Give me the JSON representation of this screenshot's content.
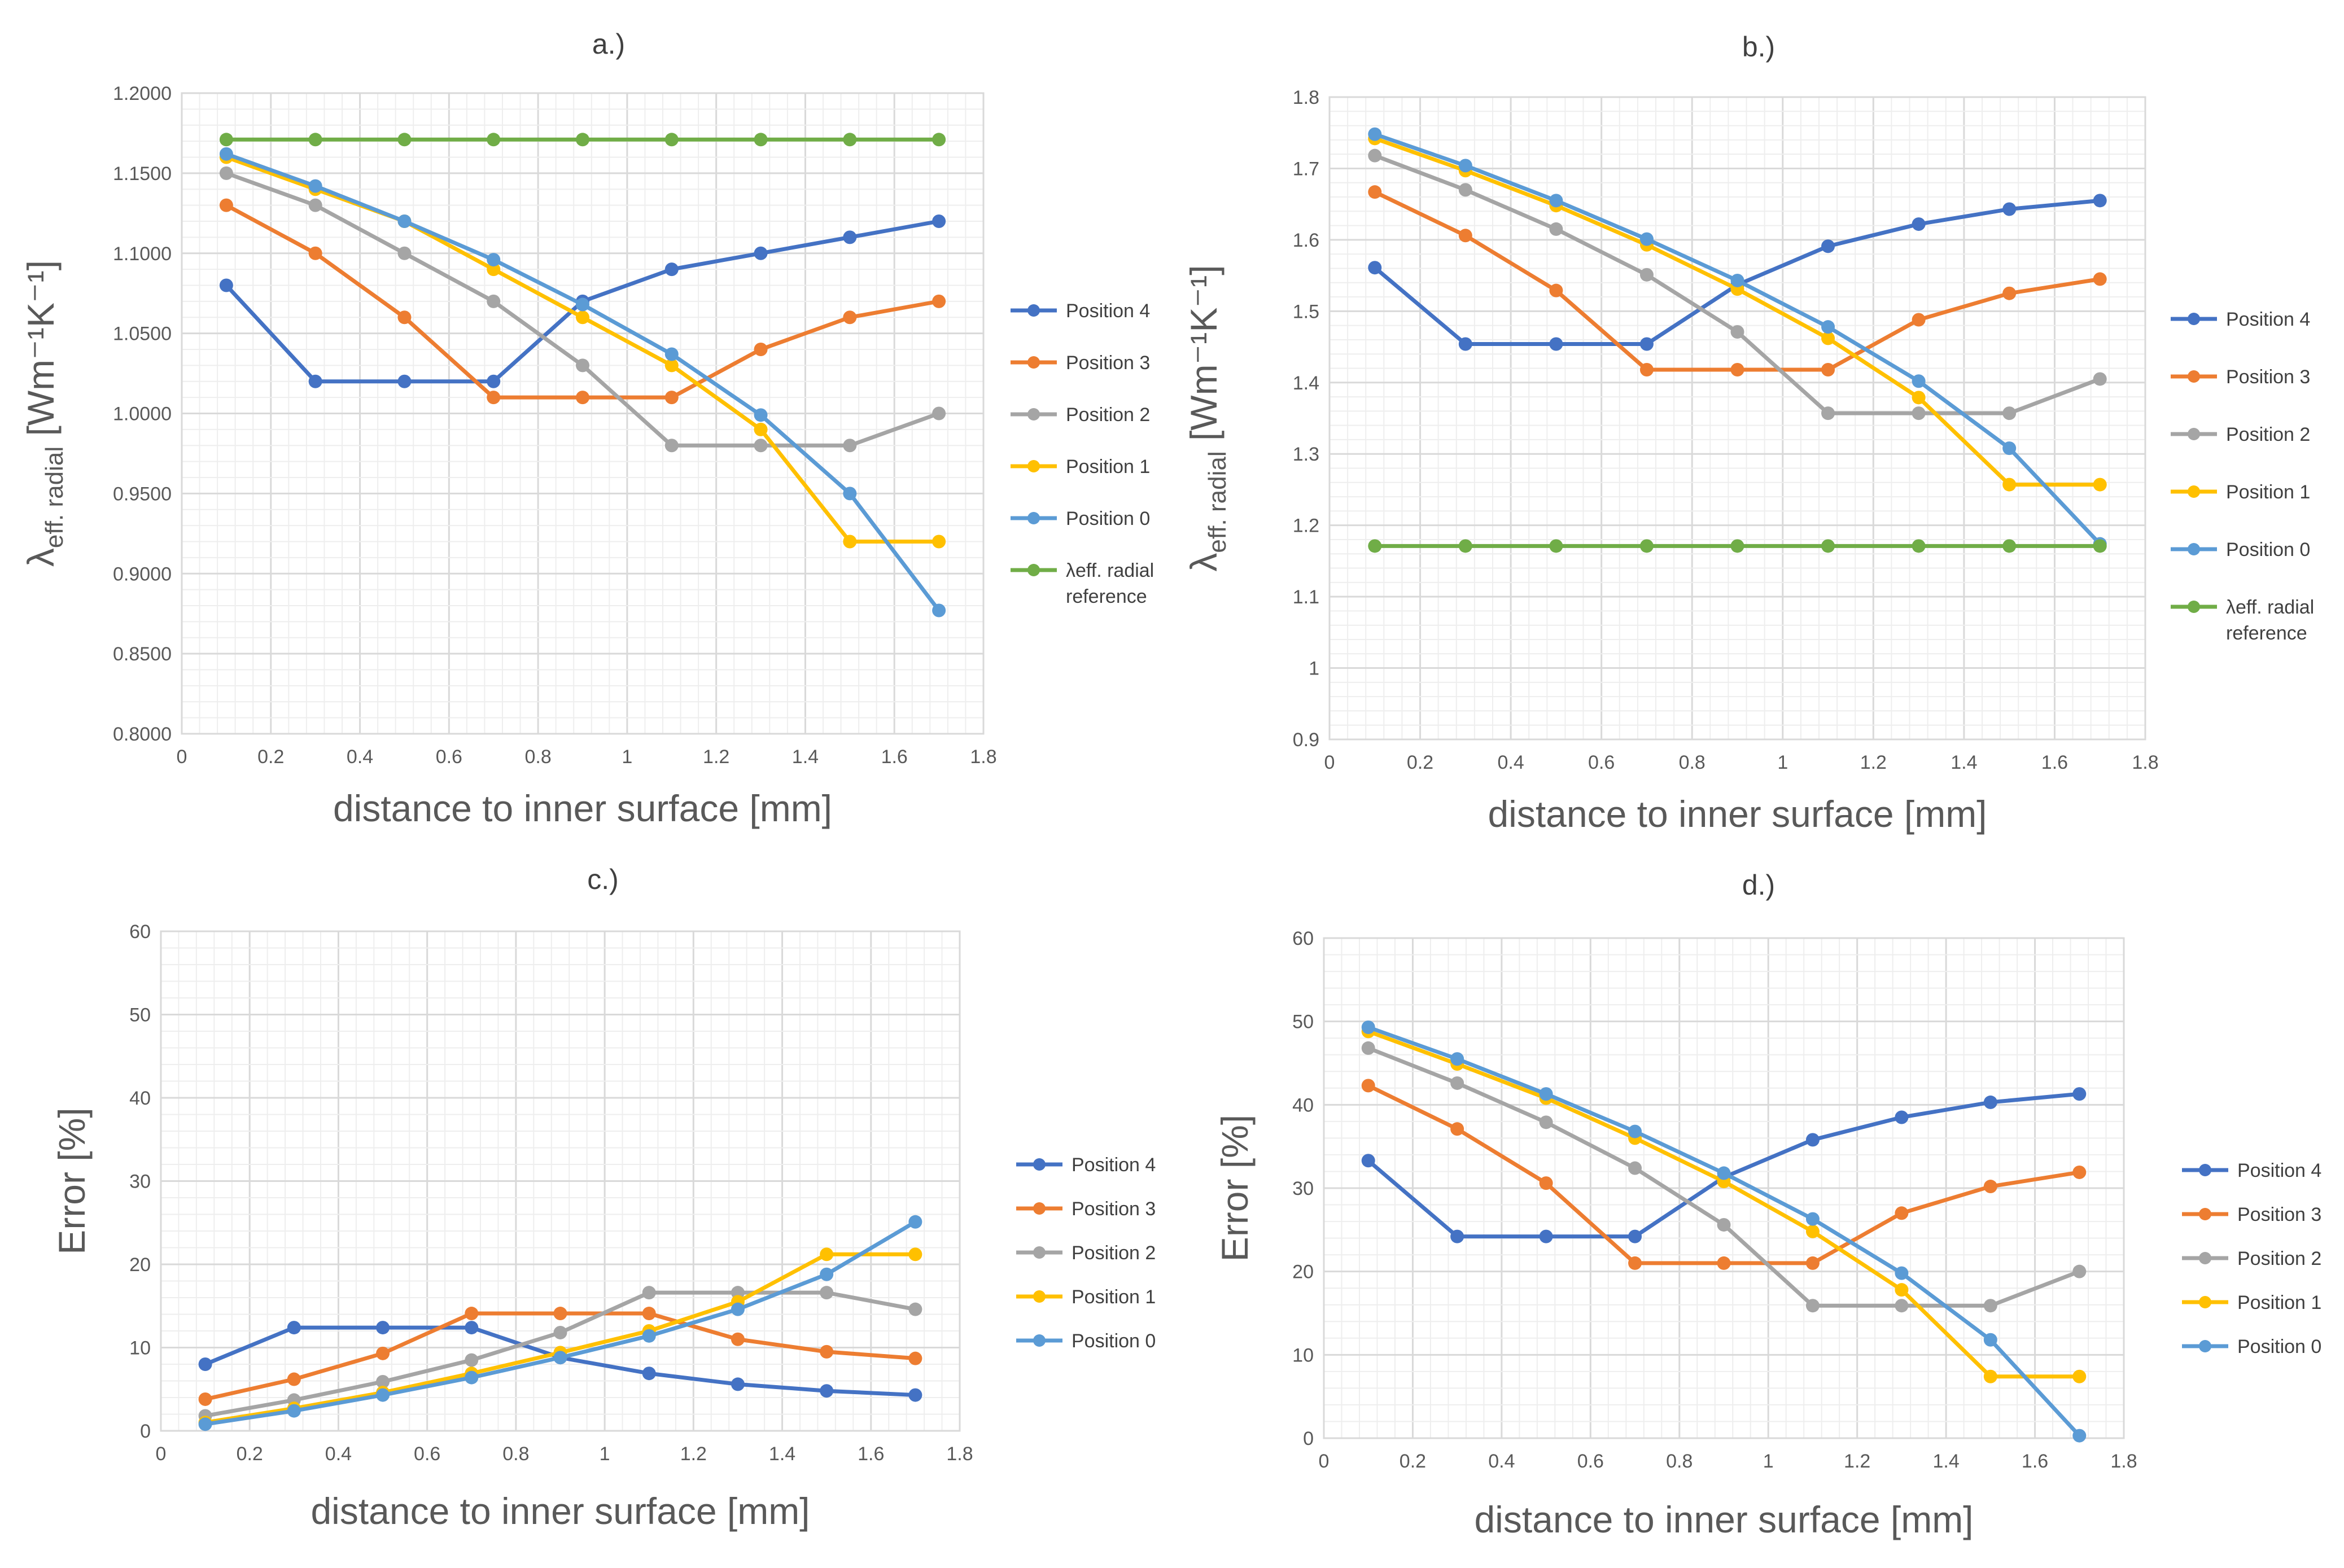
{
  "chart_data": [
    {
      "type": "line",
      "title": "a.)",
      "xlabel": "distance to inner surface [mm]",
      "ylabel": {
        "main": "λ",
        "sub": "eff. radial",
        "unit": " [Wm⁻¹K⁻¹]"
      },
      "xlim": [
        0,
        1.8
      ],
      "ylim": [
        0.8,
        1.2
      ],
      "x_ticks": [
        "0",
        "0.2",
        "0.4",
        "0.6",
        "0.8",
        "1",
        "1.2",
        "1.4",
        "1.6",
        "1.8"
      ],
      "y_ticks": [
        "0.8000",
        "0.8500",
        "0.9000",
        "0.9500",
        "1.0000",
        "1.0500",
        "1.1000",
        "1.1500",
        "1.2000"
      ],
      "grid": true,
      "legend_position": "right",
      "x": [
        0.1,
        0.3,
        0.5,
        0.7,
        0.9,
        1.1,
        1.3,
        1.5,
        1.7
      ],
      "series": [
        {
          "name": "Position 4",
          "color": "#4472C4",
          "values": [
            1.08,
            1.02,
            1.02,
            1.02,
            1.07,
            1.09,
            1.1,
            1.11,
            1.12
          ]
        },
        {
          "name": "Position 3",
          "color": "#ED7D31",
          "values": [
            1.13,
            1.1,
            1.06,
            1.01,
            1.01,
            1.01,
            1.04,
            1.06,
            1.07
          ]
        },
        {
          "name": "Position 2",
          "color": "#A5A5A5",
          "values": [
            1.15,
            1.13,
            1.1,
            1.07,
            1.03,
            0.98,
            0.98,
            0.98,
            1.0
          ]
        },
        {
          "name": "Position 1",
          "color": "#FFC000",
          "values": [
            1.16,
            1.14,
            1.12,
            1.09,
            1.06,
            1.03,
            0.99,
            0.92,
            0.92
          ]
        },
        {
          "name": "Position 0",
          "color": "#5B9BD5",
          "values": [
            1.162,
            1.142,
            1.12,
            1.096,
            1.068,
            1.037,
            0.999,
            0.95,
            0.877
          ]
        },
        {
          "name": "λeff. radial reference",
          "color": "#70AD47",
          "values": [
            1.171,
            1.171,
            1.171,
            1.171,
            1.171,
            1.171,
            1.171,
            1.171,
            1.171
          ]
        }
      ]
    },
    {
      "type": "line",
      "title": "b.)",
      "xlabel": "distance to inner surface [mm]",
      "ylabel": {
        "main": "λ",
        "sub": "eff. radial",
        "unit": " [Wm⁻¹K⁻¹]"
      },
      "xlim": [
        0,
        1.8
      ],
      "ylim": [
        0.9,
        1.8
      ],
      "x_ticks": [
        "0",
        "0.2",
        "0.4",
        "0.6",
        "0.8",
        "1",
        "1.2",
        "1.4",
        "1.6",
        "1.8"
      ],
      "y_ticks": [
        "0.9",
        "1",
        "1.1",
        "1.2",
        "1.3",
        "1.4",
        "1.5",
        "1.6",
        "1.7",
        "1.8"
      ],
      "grid": true,
      "legend_position": "right",
      "x": [
        0.1,
        0.3,
        0.5,
        0.7,
        0.9,
        1.1,
        1.3,
        1.5,
        1.7
      ],
      "series": [
        {
          "name": "Position 4",
          "color": "#4472C4",
          "values": [
            1.561,
            1.454,
            1.454,
            1.454,
            1.537,
            1.591,
            1.622,
            1.643,
            1.655
          ]
        },
        {
          "name": "Position 3",
          "color": "#ED7D31",
          "values": [
            1.667,
            1.606,
            1.529,
            1.418,
            1.418,
            1.418,
            1.488,
            1.525,
            1.545
          ]
        },
        {
          "name": "Position 2",
          "color": "#A5A5A5",
          "values": [
            1.718,
            1.67,
            1.615,
            1.551,
            1.471,
            1.357,
            1.357,
            1.357,
            1.405
          ]
        },
        {
          "name": "Position 1",
          "color": "#FFC000",
          "values": [
            1.742,
            1.697,
            1.648,
            1.593,
            1.531,
            1.462,
            1.379,
            1.257,
            1.257
          ]
        },
        {
          "name": "Position 0",
          "color": "#5B9BD5",
          "values": [
            1.748,
            1.704,
            1.655,
            1.601,
            1.543,
            1.478,
            1.402,
            1.308,
            1.174
          ]
        },
        {
          "name": "λeff. radial reference",
          "color": "#70AD47",
          "values": [
            1.171,
            1.171,
            1.171,
            1.171,
            1.171,
            1.171,
            1.171,
            1.171,
            1.171
          ]
        }
      ]
    },
    {
      "type": "line",
      "title": "c.)",
      "xlabel": "distance to inner surface [mm]",
      "ylabel": {
        "main": "Error [%]"
      },
      "xlim": [
        0,
        1.8
      ],
      "ylim": [
        0,
        60
      ],
      "x_ticks": [
        "0",
        "0.2",
        "0.4",
        "0.6",
        "0.8",
        "1",
        "1.2",
        "1.4",
        "1.6",
        "1.8"
      ],
      "y_ticks": [
        "0",
        "10",
        "20",
        "30",
        "40",
        "50",
        "60"
      ],
      "grid": true,
      "legend_position": "right",
      "x": [
        0.1,
        0.3,
        0.5,
        0.7,
        0.9,
        1.1,
        1.3,
        1.5,
        1.7
      ],
      "series": [
        {
          "name": "Position 4",
          "color": "#4472C4",
          "values": [
            8.0,
            12.4,
            12.4,
            12.4,
            8.8,
            6.9,
            5.6,
            4.8,
            4.3
          ]
        },
        {
          "name": "Position 3",
          "color": "#ED7D31",
          "values": [
            3.8,
            6.2,
            9.3,
            14.1,
            14.1,
            14.1,
            11.0,
            9.5,
            8.7
          ]
        },
        {
          "name": "Position 2",
          "color": "#A5A5A5",
          "values": [
            1.8,
            3.7,
            5.9,
            8.5,
            11.8,
            16.6,
            16.6,
            16.6,
            14.6
          ]
        },
        {
          "name": "Position 1",
          "color": "#FFC000",
          "values": [
            1.0,
            2.7,
            4.6,
            6.9,
            9.4,
            12.0,
            15.5,
            21.2,
            21.2
          ]
        },
        {
          "name": "Position 0",
          "color": "#5B9BD5",
          "values": [
            0.8,
            2.4,
            4.3,
            6.4,
            8.8,
            11.4,
            14.6,
            18.8,
            25.1
          ]
        }
      ]
    },
    {
      "type": "line",
      "title": "d.)",
      "xlabel": "distance to inner surface [mm]",
      "ylabel": {
        "main": "Error [%]"
      },
      "xlim": [
        0,
        1.8
      ],
      "ylim": [
        0,
        60
      ],
      "x_ticks": [
        "0",
        "0.2",
        "0.4",
        "0.6",
        "0.8",
        "1",
        "1.2",
        "1.4",
        "1.6",
        "1.8"
      ],
      "y_ticks": [
        "0",
        "10",
        "20",
        "30",
        "40",
        "50",
        "60"
      ],
      "grid": true,
      "legend_position": "right",
      "x": [
        0.1,
        0.3,
        0.5,
        0.7,
        0.9,
        1.1,
        1.3,
        1.5,
        1.7
      ],
      "series": [
        {
          "name": "Position 4",
          "color": "#4472C4",
          "values": [
            33.3,
            24.2,
            24.2,
            24.2,
            31.3,
            35.8,
            38.5,
            40.3,
            41.3
          ]
        },
        {
          "name": "Position 3",
          "color": "#ED7D31",
          "values": [
            42.3,
            37.1,
            30.6,
            21.0,
            21.0,
            21.0,
            27.0,
            30.2,
            31.9
          ]
        },
        {
          "name": "Position 2",
          "color": "#A5A5A5",
          "values": [
            46.8,
            42.6,
            37.9,
            32.4,
            25.6,
            15.9,
            15.9,
            15.9,
            20.0
          ]
        },
        {
          "name": "Position 1",
          "color": "#FFC000",
          "values": [
            48.8,
            44.9,
            40.8,
            36.0,
            30.8,
            24.8,
            17.8,
            7.4,
            7.4
          ]
        },
        {
          "name": "Position 0",
          "color": "#5B9BD5",
          "values": [
            49.3,
            45.5,
            41.3,
            36.8,
            31.8,
            26.3,
            19.8,
            11.8,
            0.3
          ]
        }
      ]
    }
  ]
}
